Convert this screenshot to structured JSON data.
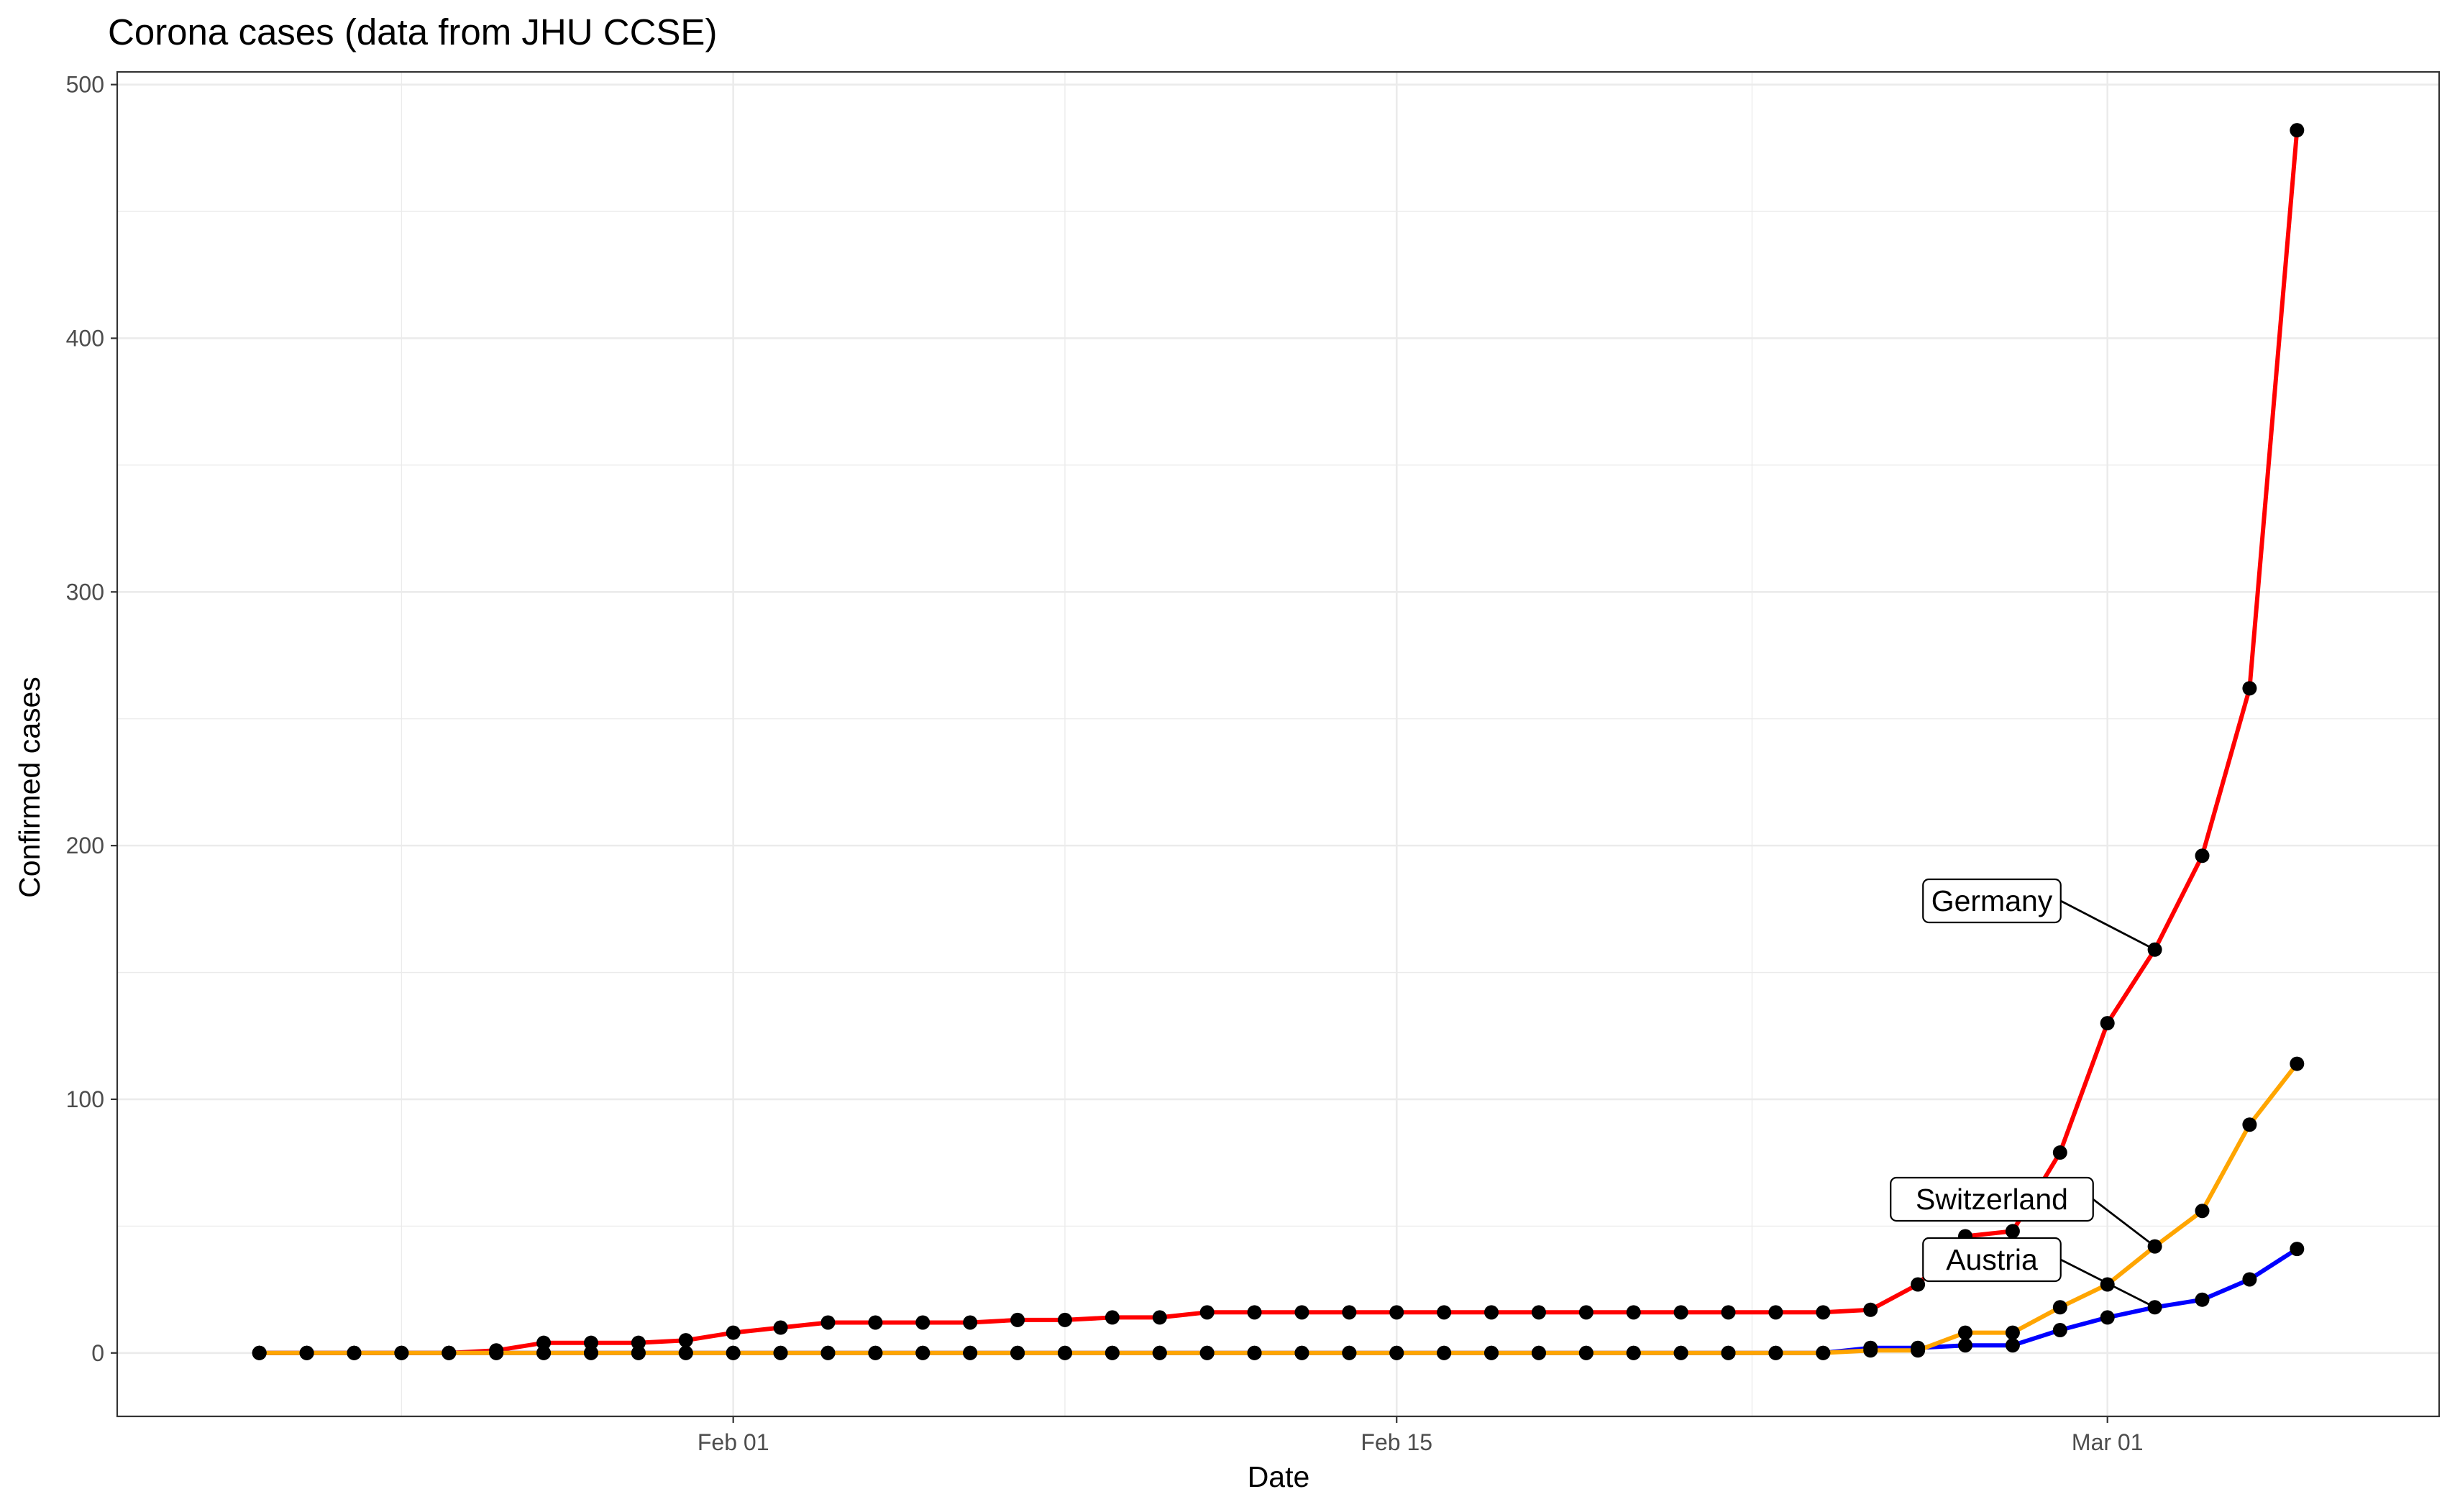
{
  "chart_data": {
    "type": "line",
    "title": "Corona cases (data from JHU CCSE)",
    "xlabel": "Date",
    "ylabel": "Confirmed cases",
    "x_axis_type": "date",
    "x_start_date": "2020-01-22",
    "x_range": [
      "2020-01-19",
      "2020-03-08"
    ],
    "xticks": [
      {
        "date": "2020-02-01",
        "label": "Feb 01"
      },
      {
        "date": "2020-02-15",
        "label": "Feb 15"
      },
      {
        "date": "2020-03-01",
        "label": "Mar 01"
      }
    ],
    "ylim": [
      -25,
      505
    ],
    "yticks": [
      0,
      100,
      200,
      300,
      400,
      500
    ],
    "grid": true,
    "legend": "none (direct labels)",
    "x": [
      "2020-01-22",
      "2020-01-23",
      "2020-01-24",
      "2020-01-25",
      "2020-01-26",
      "2020-01-27",
      "2020-01-28",
      "2020-01-29",
      "2020-01-30",
      "2020-01-31",
      "2020-02-01",
      "2020-02-02",
      "2020-02-03",
      "2020-02-04",
      "2020-02-05",
      "2020-02-06",
      "2020-02-07",
      "2020-02-08",
      "2020-02-09",
      "2020-02-10",
      "2020-02-11",
      "2020-02-12",
      "2020-02-13",
      "2020-02-14",
      "2020-02-15",
      "2020-02-16",
      "2020-02-17",
      "2020-02-18",
      "2020-02-19",
      "2020-02-20",
      "2020-02-21",
      "2020-02-22",
      "2020-02-23",
      "2020-02-24",
      "2020-02-25",
      "2020-02-26",
      "2020-02-27",
      "2020-02-28",
      "2020-02-29",
      "2020-03-01",
      "2020-03-02",
      "2020-03-03",
      "2020-03-04",
      "2020-03-05"
    ],
    "series": [
      {
        "name": "Germany",
        "color": "#FF0000",
        "values": [
          0,
          0,
          0,
          0,
          0,
          1,
          4,
          4,
          4,
          5,
          8,
          10,
          12,
          12,
          12,
          12,
          13,
          13,
          14,
          14,
          16,
          16,
          16,
          16,
          16,
          16,
          16,
          16,
          16,
          16,
          16,
          16,
          16,
          16,
          17,
          27,
          46,
          48,
          79,
          130,
          159,
          196,
          262,
          482
        ]
      },
      {
        "name": "Switzerland",
        "color": "#FFA500",
        "values": [
          0,
          0,
          0,
          0,
          0,
          0,
          0,
          0,
          0,
          0,
          0,
          0,
          0,
          0,
          0,
          0,
          0,
          0,
          0,
          0,
          0,
          0,
          0,
          0,
          0,
          0,
          0,
          0,
          0,
          0,
          0,
          0,
          0,
          0,
          1,
          1,
          8,
          8,
          18,
          27,
          42,
          56,
          90,
          114
        ]
      },
      {
        "name": "Austria",
        "color": "#0000FF",
        "values": [
          0,
          0,
          0,
          0,
          0,
          0,
          0,
          0,
          0,
          0,
          0,
          0,
          0,
          0,
          0,
          0,
          0,
          0,
          0,
          0,
          0,
          0,
          0,
          0,
          0,
          0,
          0,
          0,
          0,
          0,
          0,
          0,
          0,
          0,
          2,
          2,
          3,
          3,
          9,
          14,
          18,
          21,
          29,
          41
        ]
      }
    ],
    "annotations": [
      {
        "text": "Germany",
        "series": "Germany",
        "point_date": "2020-03-02",
        "point_value": 159
      },
      {
        "text": "Switzerland",
        "series": "Switzerland",
        "point_date": "2020-03-02",
        "point_value": 42
      },
      {
        "text": "Austria",
        "series": "Austria",
        "point_date": "2020-03-02",
        "point_value": 18
      }
    ]
  }
}
